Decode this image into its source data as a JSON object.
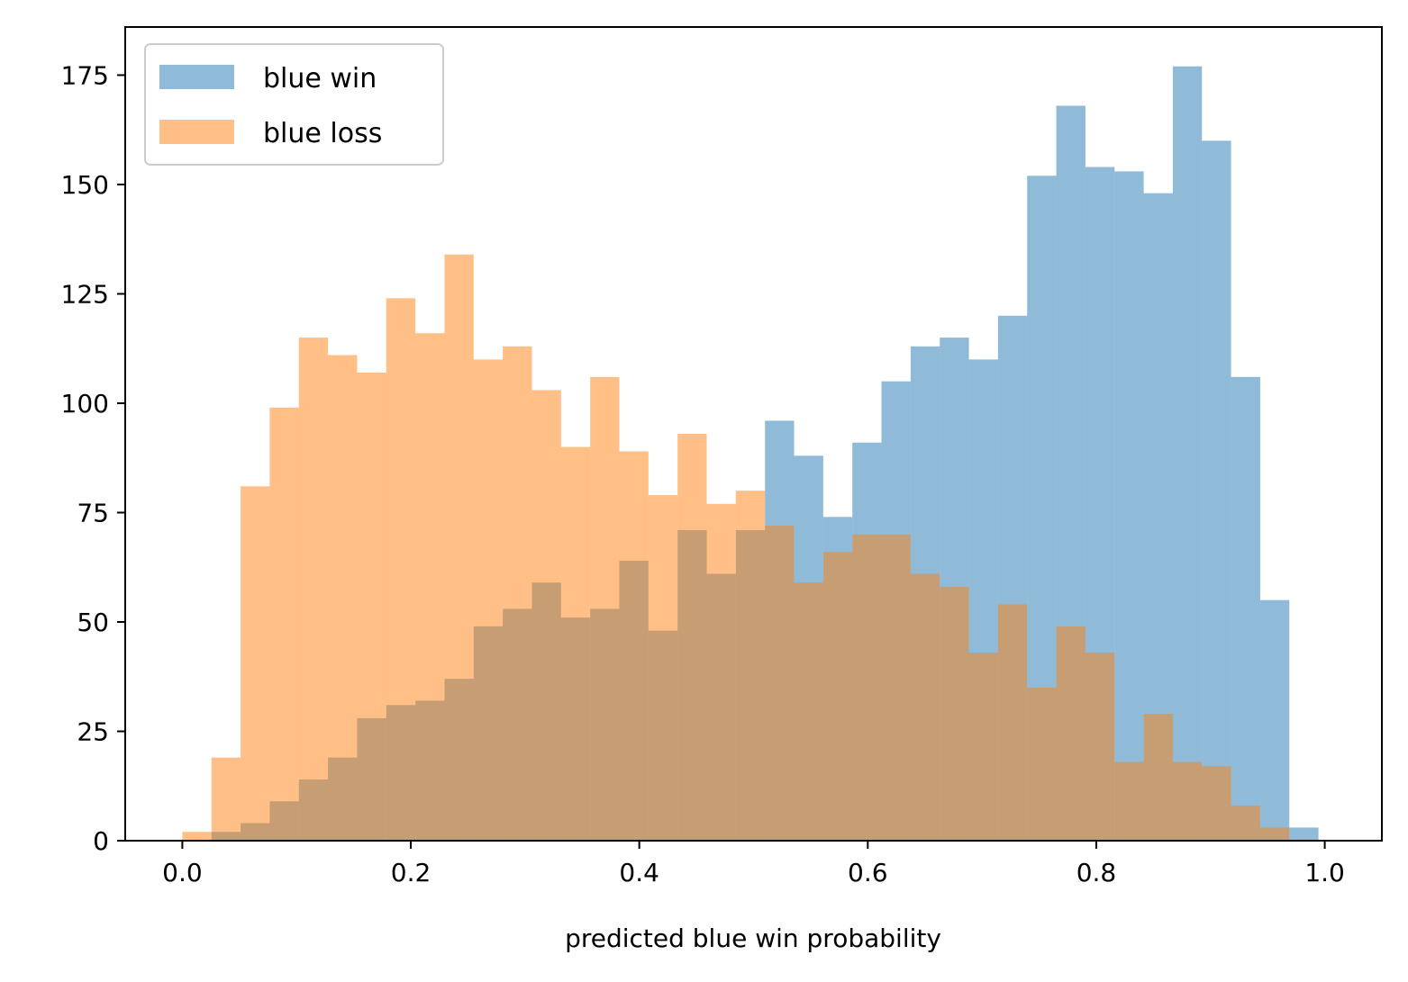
{
  "chart_data": {
    "type": "bar",
    "subtype": "overlapping-histogram",
    "title": "",
    "xlabel": "predicted blue win probability",
    "ylabel": "",
    "xlim": [
      -0.05,
      1.05
    ],
    "ylim": [
      0,
      186
    ],
    "xticks": [
      0.0,
      0.2,
      0.4,
      0.6,
      0.8,
      1.0
    ],
    "xtick_labels": [
      "0.0",
      "0.2",
      "0.4",
      "0.6",
      "0.8",
      "1.0"
    ],
    "yticks": [
      0,
      25,
      50,
      75,
      100,
      125,
      150,
      175
    ],
    "ytick_labels": [
      "0",
      "25",
      "50",
      "75",
      "100",
      "125",
      "150",
      "175"
    ],
    "grid": false,
    "legend_position": "top-left",
    "bar_alpha": 0.5,
    "series": [
      {
        "name": "blue win",
        "color": "#1f77b4",
        "bin_start": 0.0255,
        "bin_width": 0.0255,
        "values": [
          2,
          4,
          9,
          14,
          19,
          28,
          31,
          32,
          37,
          49,
          53,
          59,
          51,
          53,
          64,
          48,
          71,
          61,
          71,
          96,
          88,
          74,
          91,
          105,
          113,
          115,
          110,
          120,
          152,
          168,
          154,
          153,
          148,
          177,
          160,
          106,
          55,
          3
        ]
      },
      {
        "name": "blue loss",
        "color": "#ff7f0e",
        "bin_start": 0.0,
        "bin_width": 0.0255,
        "values": [
          2,
          19,
          81,
          99,
          115,
          111,
          107,
          124,
          116,
          134,
          110,
          113,
          103,
          90,
          106,
          89,
          79,
          93,
          77,
          80,
          72,
          59,
          66,
          70,
          70,
          61,
          58,
          43,
          54,
          35,
          49,
          43,
          18,
          29,
          18,
          17,
          8,
          3
        ]
      }
    ]
  }
}
